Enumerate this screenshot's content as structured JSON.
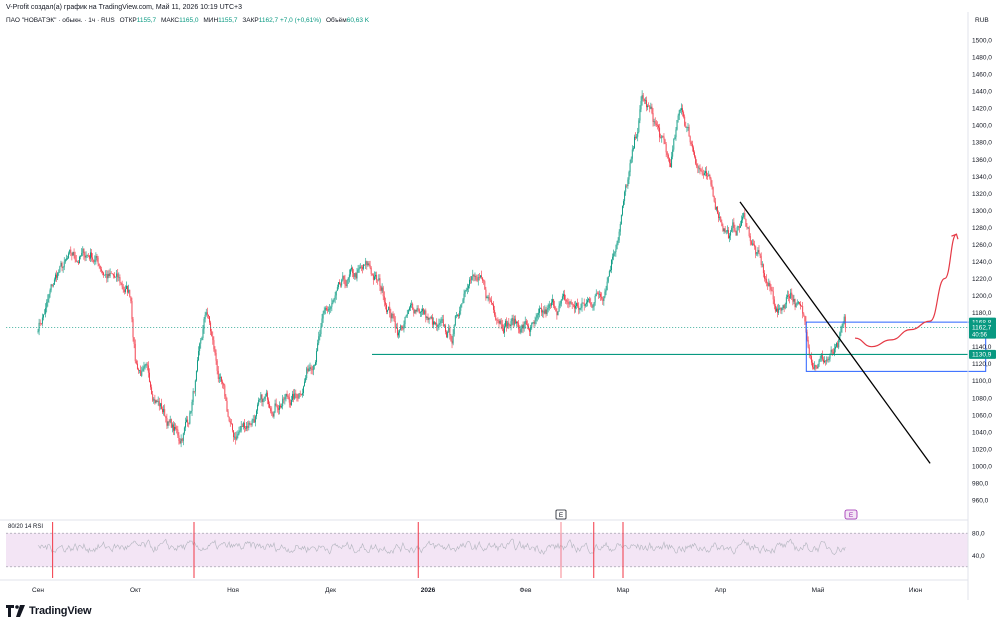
{
  "header": {
    "attribution": "V-Profit создал(а) график на TradingView.com, Май 11, 2026 10:19 UTC+3"
  },
  "symbol_info": {
    "name": "ПАО \"НОВАТЭК\" · обыкн. · 1ч · RUS",
    "open_label": "ОТКР",
    "open": "1155,7",
    "high_label": "МАКС",
    "high": "1165,0",
    "low_label": "МИН",
    "low": "1155,7",
    "close_label": "ЗАКР",
    "close": "1162,7",
    "change": "+7,0 (+0,61%)",
    "volume_label": "Объём",
    "volume": "60,63 K"
  },
  "currency": "RUB",
  "price_tags": {
    "upper_level": "1168,8",
    "last_price": "1162,7",
    "countdown": "40:56",
    "support_level": "1130,9"
  },
  "rsi_panel": {
    "label": "80/20 14 RSI",
    "ticks": [
      "80,0",
      "40,0"
    ],
    "range": [
      0,
      100
    ],
    "upper": 80,
    "lower": 20
  },
  "event_markers": {
    "earnings_label": "E",
    "upcoming_label": "E"
  },
  "brand": {
    "name": "TradingView"
  },
  "colors": {
    "up": "#089981",
    "down": "#f23645",
    "support_line": "#089981",
    "box": "#2962ff",
    "trendline": "#000000",
    "forecast": "#e53945",
    "rsi_band": "#f3e5f5",
    "rsi_line": "#b2b5be",
    "purple": "#9c27b0"
  },
  "chart_data": {
    "type": "candlestick",
    "timeframe": "1h",
    "x_labels": [
      "Сен",
      "Окт",
      "Ноя",
      "Дек",
      "2026",
      "Фев",
      "Мар",
      "Апр",
      "Май",
      "Июн"
    ],
    "y_ticks": [
      "1500,0",
      "1480,0",
      "1460,0",
      "1440,0",
      "1420,0",
      "1400,0",
      "1380,0",
      "1360,0",
      "1340,0",
      "1320,0",
      "1300,0",
      "1280,0",
      "1260,0",
      "1240,0",
      "1220,0",
      "1200,0",
      "1180,0",
      "1160,0",
      "1140,0",
      "1120,0",
      "1100,0",
      "1080,0",
      "1060,0",
      "1040,0",
      "1020,0",
      "1000,0",
      "980,0",
      "960,0"
    ],
    "ylim": [
      960,
      1500
    ],
    "path_anchors": [
      {
        "month": 0.0,
        "price": 1165
      },
      {
        "month": 0.08,
        "price": 1185
      },
      {
        "month": 0.2,
        "price": 1225
      },
      {
        "month": 0.35,
        "price": 1240
      },
      {
        "month": 0.55,
        "price": 1250
      },
      {
        "month": 0.75,
        "price": 1220
      },
      {
        "month": 0.95,
        "price": 1200
      },
      {
        "month": 1.0,
        "price": 1125
      },
      {
        "month": 1.2,
        "price": 1085
      },
      {
        "month": 1.35,
        "price": 1050
      },
      {
        "month": 1.45,
        "price": 1030
      },
      {
        "month": 1.55,
        "price": 1060
      },
      {
        "month": 1.65,
        "price": 1120
      },
      {
        "month": 1.73,
        "price": 1180
      },
      {
        "month": 1.85,
        "price": 1105
      },
      {
        "month": 2.0,
        "price": 1030
      },
      {
        "month": 2.1,
        "price": 1045
      },
      {
        "month": 2.25,
        "price": 1065
      },
      {
        "month": 2.45,
        "price": 1080
      },
      {
        "month": 2.65,
        "price": 1080
      },
      {
        "month": 2.8,
        "price": 1125
      },
      {
        "month": 2.95,
        "price": 1175
      },
      {
        "month": 3.2,
        "price": 1215
      },
      {
        "month": 3.4,
        "price": 1230
      },
      {
        "month": 3.55,
        "price": 1200
      },
      {
        "month": 3.7,
        "price": 1160
      },
      {
        "month": 3.9,
        "price": 1190
      },
      {
        "month": 4.1,
        "price": 1155
      },
      {
        "month": 4.25,
        "price": 1150
      },
      {
        "month": 4.42,
        "price": 1235
      },
      {
        "month": 4.6,
        "price": 1195
      },
      {
        "month": 4.85,
        "price": 1170
      },
      {
        "month": 5.1,
        "price": 1160
      },
      {
        "month": 5.35,
        "price": 1190
      },
      {
        "month": 5.6,
        "price": 1185
      },
      {
        "month": 5.8,
        "price": 1210
      },
      {
        "month": 5.95,
        "price": 1280
      },
      {
        "month": 6.1,
        "price": 1360
      },
      {
        "month": 6.2,
        "price": 1430
      },
      {
        "month": 6.35,
        "price": 1395
      },
      {
        "month": 6.48,
        "price": 1350
      },
      {
        "month": 6.6,
        "price": 1420
      },
      {
        "month": 6.7,
        "price": 1380
      },
      {
        "month": 6.9,
        "price": 1320
      },
      {
        "month": 7.1,
        "price": 1270
      },
      {
        "month": 7.25,
        "price": 1290
      },
      {
        "month": 7.45,
        "price": 1220
      },
      {
        "month": 7.6,
        "price": 1180
      },
      {
        "month": 7.72,
        "price": 1210
      },
      {
        "month": 7.85,
        "price": 1170
      },
      {
        "month": 7.95,
        "price": 1130
      },
      {
        "month": 8.05,
        "price": 1125
      },
      {
        "month": 8.2,
        "price": 1130
      },
      {
        "month": 8.28,
        "price": 1162.7
      }
    ],
    "support_level": 1130.9,
    "upper_level": 1168.8,
    "last_price": 1162.7,
    "box": {
      "from_month": 7.88,
      "to_month": 9.72,
      "low": 1111,
      "high": 1168.8
    },
    "trendline": {
      "from": {
        "month": 7.2,
        "price": 1310
      },
      "to": {
        "month": 9.15,
        "price": 1003
      }
    },
    "forecast_path": [
      {
        "month": 8.38,
        "price": 1150
      },
      {
        "month": 8.55,
        "price": 1140
      },
      {
        "month": 8.75,
        "price": 1148
      },
      {
        "month": 8.95,
        "price": 1160
      },
      {
        "month": 9.15,
        "price": 1170
      },
      {
        "month": 9.3,
        "price": 1220
      },
      {
        "month": 9.42,
        "price": 1272
      }
    ],
    "rsi_extreme_months": [
      0.15,
      1.6,
      3.9,
      5.7,
      6.0
    ]
  }
}
